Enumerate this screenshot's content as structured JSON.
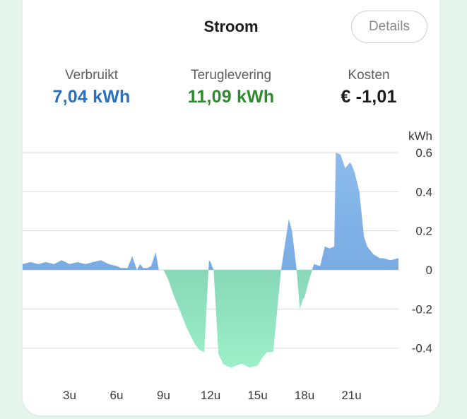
{
  "header": {
    "title": "Stroom",
    "details_label": "Details"
  },
  "stats": [
    {
      "label": "Verbruikt",
      "value": "7,04 kWh",
      "color": "#2a6fc0"
    },
    {
      "label": "Teruglevering",
      "value": "11,09 kWh",
      "color": "#2e8b2e"
    },
    {
      "label": "Kosten",
      "value": "€ -1,01",
      "color": "#1c1c1c"
    }
  ],
  "chart_data": {
    "type": "area",
    "ylabel": "kWh",
    "ylim": [
      -0.5,
      0.6
    ],
    "yticks": [
      0.6,
      0.4,
      0.2,
      0,
      -0.2,
      -0.4
    ],
    "ytick_labels": [
      "0.6",
      "0.4",
      "0.2",
      "0",
      "-0.2",
      "-0.4"
    ],
    "xlim": [
      0,
      24
    ],
    "xticks": [
      3,
      6,
      9,
      12,
      15,
      18,
      21
    ],
    "xtick_labels": [
      "3u",
      "6u",
      "9u",
      "12u",
      "15u",
      "18u",
      "21u"
    ],
    "grid": true,
    "positive_color": "#6fa3de",
    "negative_color": "#8fe3c0",
    "series": [
      {
        "x": [
          0,
          0.5,
          1,
          1.5,
          2,
          2.5,
          3,
          3.5,
          4,
          4.5,
          5,
          5.5,
          6,
          6.3,
          6.7,
          7,
          7.3,
          7.5,
          7.7,
          8,
          8.2,
          8.5,
          8.7,
          8.9,
          9,
          9.3,
          9.6,
          10,
          10.5,
          11,
          11.3,
          11.6,
          11.9,
          12,
          12.2,
          12.5,
          12.8,
          13,
          13.3,
          13.6,
          14,
          14.5,
          15,
          15.3,
          15.6,
          16,
          16.5,
          17,
          17.2,
          17.5,
          17.7,
          17.9,
          18,
          18.3,
          18.6,
          19,
          19.3,
          19.6,
          19.9,
          20,
          20.3,
          20.6,
          20.9,
          21,
          21.2,
          21.5,
          21.8,
          22,
          22.4,
          22.8,
          23,
          23.5,
          24
        ],
        "y": [
          0.03,
          0.04,
          0.03,
          0.04,
          0.03,
          0.05,
          0.03,
          0.04,
          0.03,
          0.04,
          0.05,
          0.03,
          0.02,
          0.01,
          0.01,
          0.07,
          0.0,
          0.03,
          0.01,
          0.01,
          0.02,
          0.09,
          0.0,
          0.0,
          0.0,
          -0.05,
          -0.12,
          -0.2,
          -0.3,
          -0.38,
          -0.41,
          -0.42,
          0.05,
          0.04,
          0.0,
          -0.43,
          -0.48,
          -0.49,
          -0.5,
          -0.49,
          -0.48,
          -0.5,
          -0.49,
          -0.45,
          -0.42,
          -0.42,
          0.0,
          0.26,
          0.2,
          0.0,
          -0.2,
          -0.15,
          -0.14,
          -0.05,
          0.03,
          0.02,
          0.12,
          0.11,
          0.12,
          0.6,
          0.59,
          0.52,
          0.55,
          0.54,
          0.5,
          0.4,
          0.17,
          0.12,
          0.08,
          0.06,
          0.06,
          0.05,
          0.06
        ]
      }
    ]
  }
}
